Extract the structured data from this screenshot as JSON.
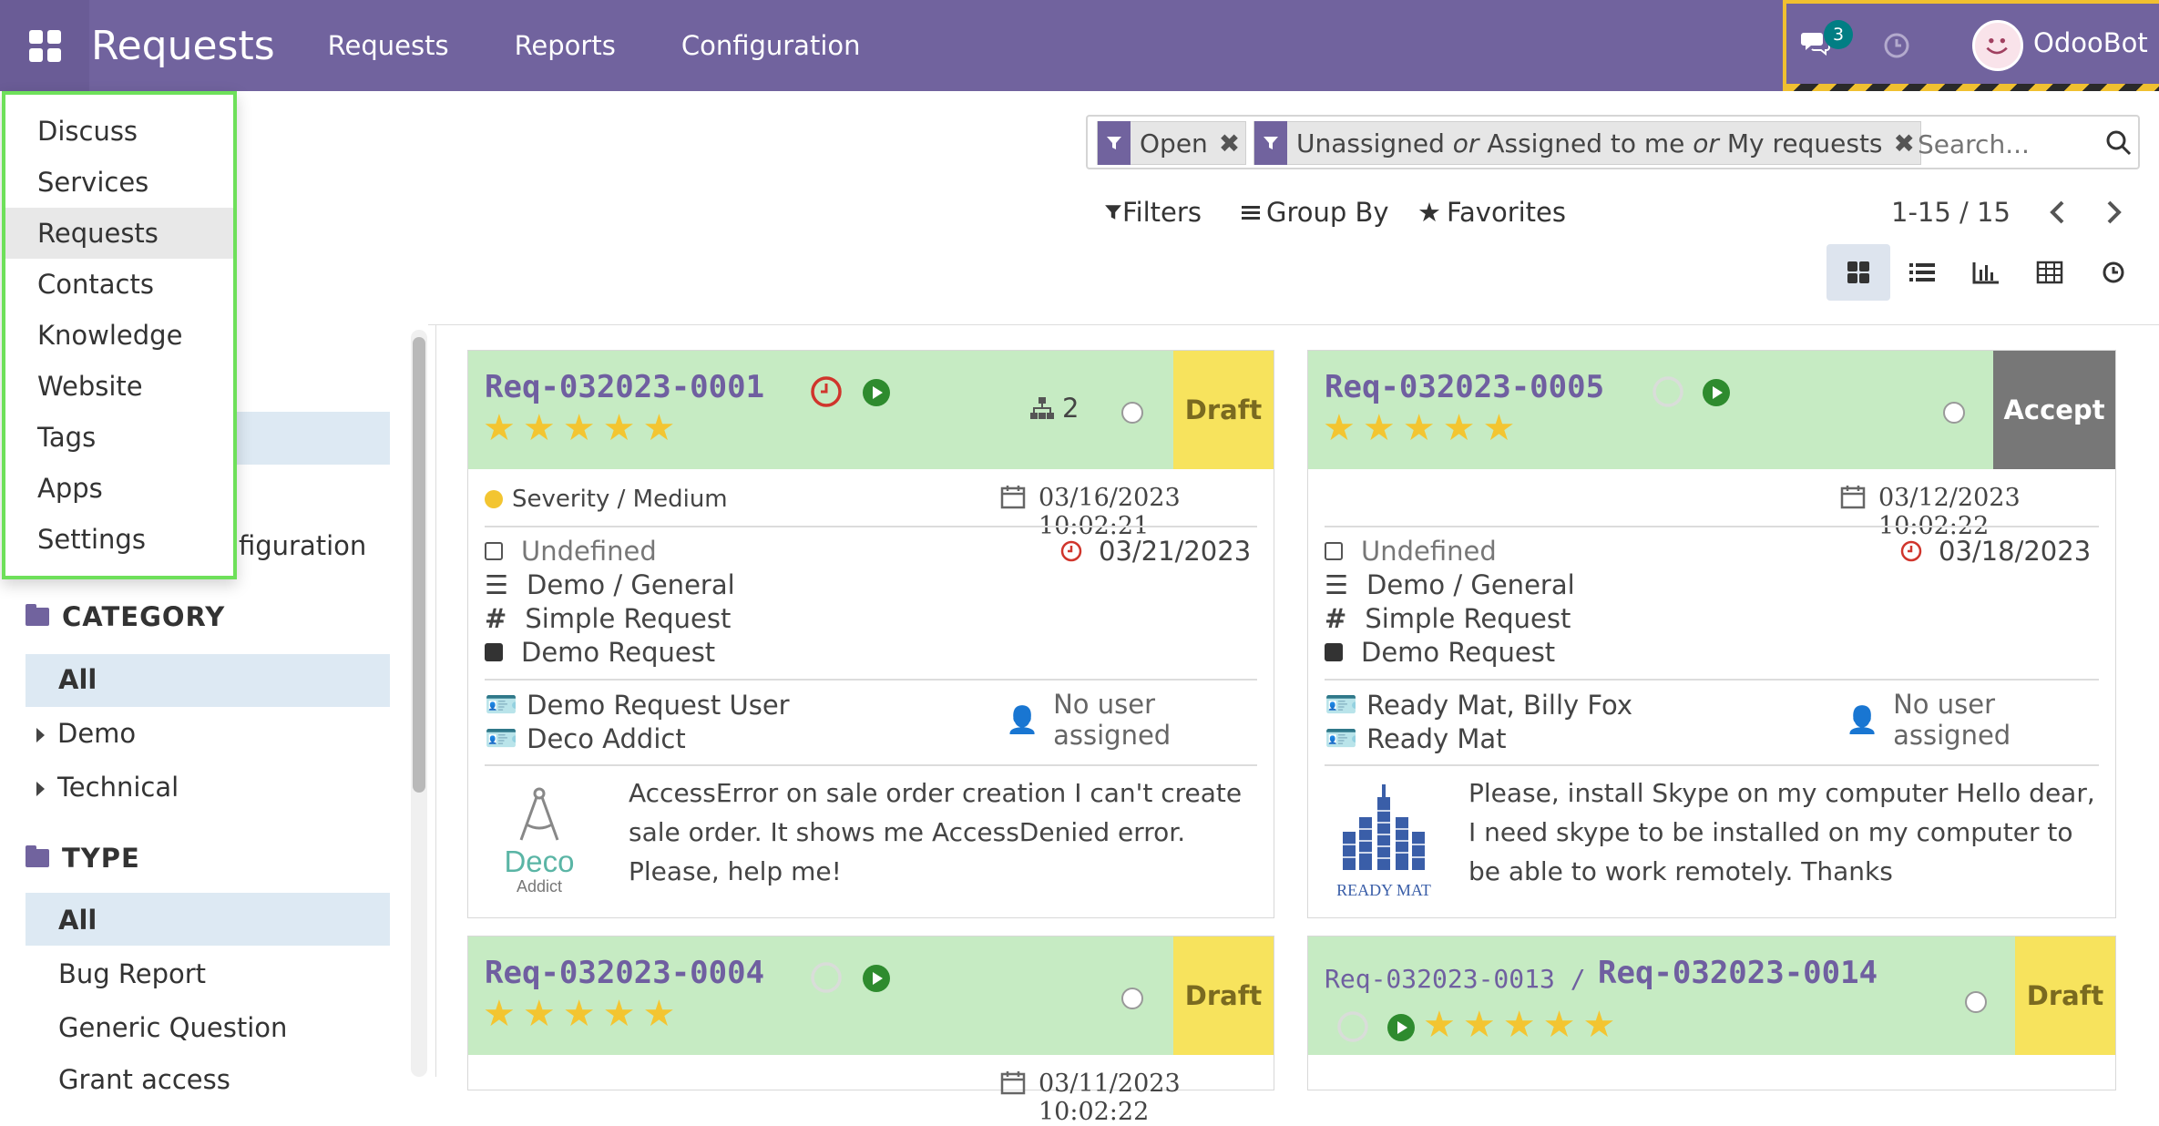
{
  "navbar": {
    "brand": "Requests",
    "items": [
      "Requests",
      "Reports",
      "Configuration"
    ],
    "chat_count": "3",
    "user": "OdooBot"
  },
  "app_menu": [
    "Discuss",
    "Services",
    "Requests",
    "Contacts",
    "Knowledge",
    "Website",
    "Tags",
    "Apps",
    "Settings"
  ],
  "search": {
    "facets": [
      {
        "label": "Open"
      },
      {
        "label_parts": [
          "Unassigned",
          "or",
          "Assigned to me",
          "or",
          "My requests"
        ]
      }
    ],
    "placeholder": "Search..."
  },
  "controls": {
    "filters": "Filters",
    "group_by": "Group By",
    "favorites": "Favorites",
    "pager": "1-15 / 15"
  },
  "sidebar": {
    "hidden_label": "figuration",
    "category": {
      "title": "CATEGORY",
      "items": [
        "All",
        "Demo",
        "Technical"
      ]
    },
    "type": {
      "title": "TYPE",
      "items": [
        "All",
        "Bug Report",
        "Generic Question",
        "Grant access"
      ]
    }
  },
  "cards": [
    {
      "ref": "Req-032023-0001",
      "stage": "Draft",
      "rating": 5,
      "subtasks": "2",
      "severity": "Severity / Medium",
      "created": "03/16/2023 10:02:21",
      "deadline": "03/21/2023",
      "assigned_state": "Undefined",
      "category": "Demo / General",
      "type": "Simple Request",
      "kind": "Demo Request",
      "author": "Demo Request User",
      "partner": "Deco Addict",
      "assignee": "No user assigned",
      "logo_text": [
        "Deco",
        "Addict"
      ],
      "description": [
        "AccessError on sale order creation I can't create",
        "sale order. It shows me AccessDenied error.",
        "Please, help me!"
      ],
      "colors": {
        "logo": "#5ab5a5"
      }
    },
    {
      "ref": "Req-032023-0005",
      "stage": "Accept",
      "rating": 5,
      "created": "03/12/2023 10:02:22",
      "deadline": "03/18/2023",
      "assigned_state": "Undefined",
      "category": "Demo / General",
      "type": "Simple Request",
      "kind": "Demo Request",
      "author": "Ready Mat, Billy Fox",
      "partner": "Ready Mat",
      "assignee": "No user assigned",
      "logo_text": [
        "Ready Mat"
      ],
      "description": [
        "Please, install Skype on my computer Hello dear,",
        "I need skype to be installed on my computer to",
        "be able to work remotely. Thanks"
      ]
    },
    {
      "ref": "Req-032023-0004",
      "stage": "Draft",
      "rating": 5,
      "created_partial": "03/11/2023 10:02:22"
    },
    {
      "parent_ref": "Req-032023-0013 /",
      "ref": "Req-032023-0014",
      "stage": "Draft",
      "rating": 5
    }
  ],
  "colors": {
    "navbar": "#71639e",
    "card_header": "#c6ebc3",
    "draft": "#f7e35d",
    "accept": "#777777",
    "star": "#f3c531",
    "title": "#6f5fa0",
    "menu_border": "#6ee05a"
  }
}
